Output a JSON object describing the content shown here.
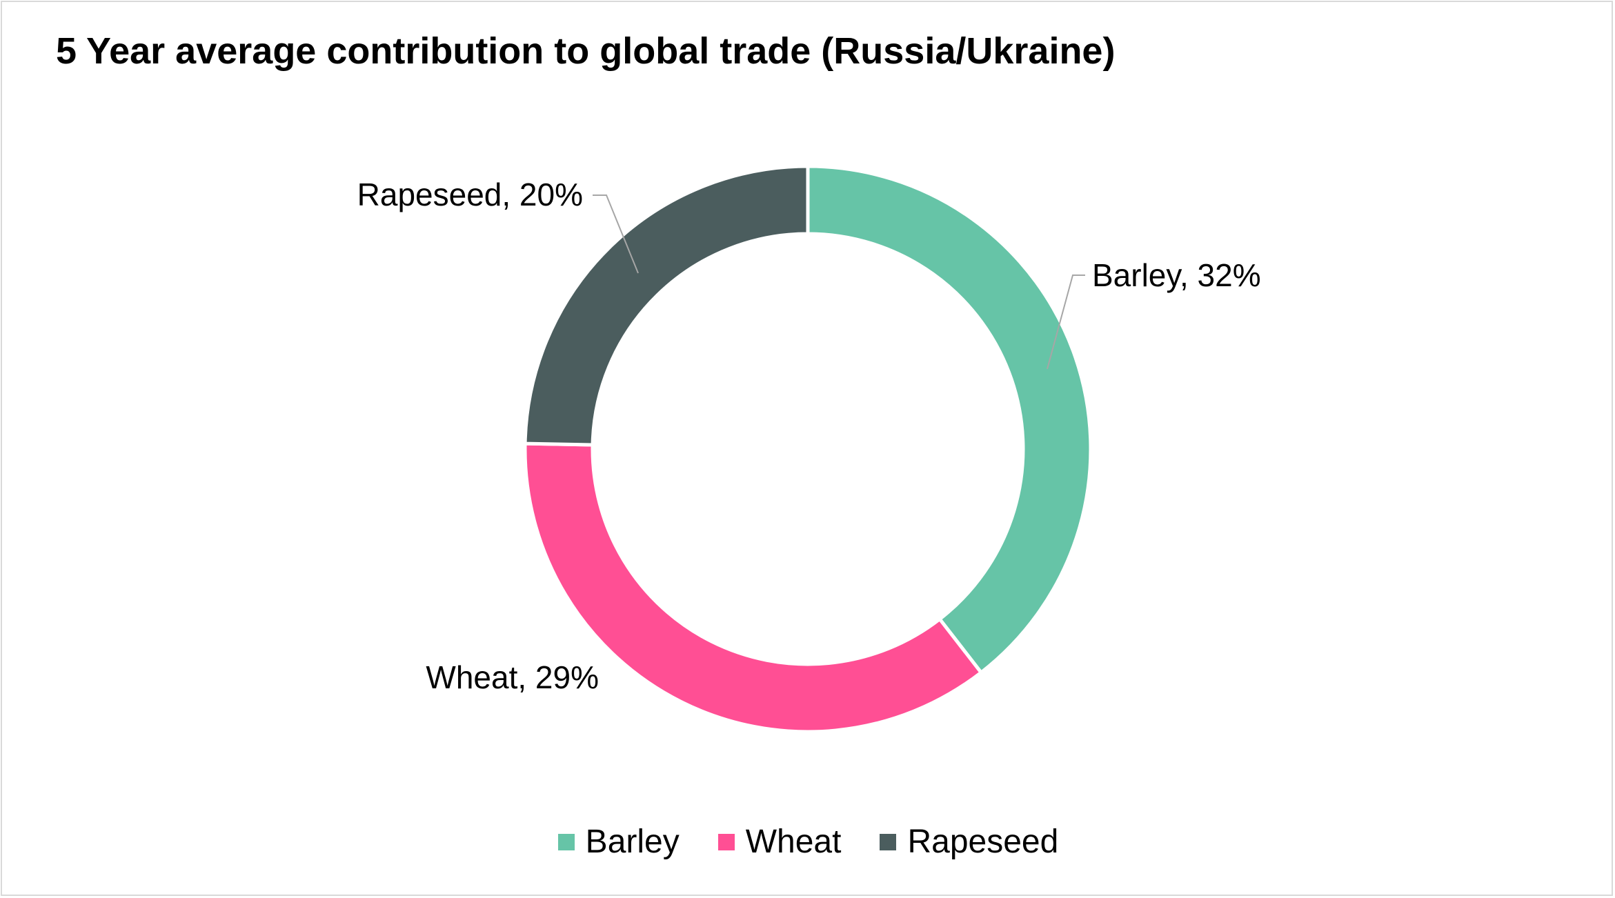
{
  "chart_data": {
    "type": "pie",
    "title": "5 Year average contribution to global trade (Russia/Ukraine)",
    "categories": [
      "Barley",
      "Wheat",
      "Rapeseed"
    ],
    "values": [
      32,
      29,
      20
    ],
    "data_labels": [
      "Barley, 32%",
      "Wheat, 29%",
      "Rapeseed, 20%"
    ],
    "colors": [
      "#66c4a7",
      "#ff4f94",
      "#4b5d5e"
    ],
    "legend_position": "bottom",
    "style": "donut"
  },
  "legend": [
    {
      "label": "Barley",
      "color": "#66c4a7"
    },
    {
      "label": "Wheat",
      "color": "#ff4f94"
    },
    {
      "label": "Rapeseed",
      "color": "#4b5d5e"
    }
  ]
}
